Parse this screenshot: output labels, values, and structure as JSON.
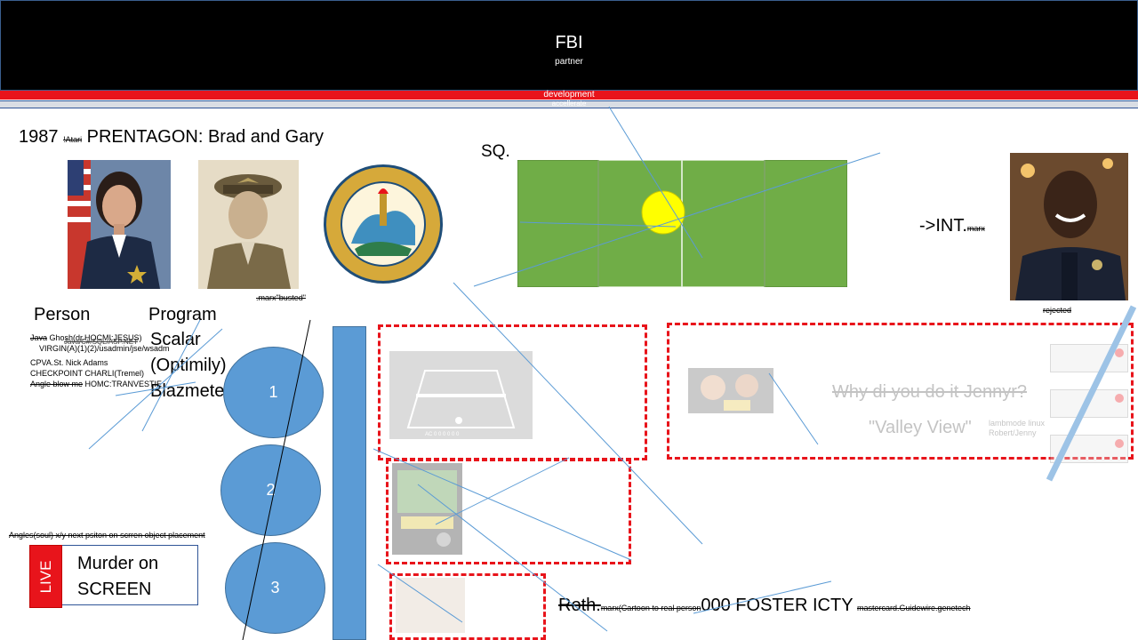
{
  "header": {
    "title": "FBI",
    "subtitle": "partner",
    "red_bar_label": "development",
    "gray_bar_label": "accellerate"
  },
  "top_left": {
    "year": "1987",
    "struck": "!Atari",
    "title": "PRENTAGON: Brad and Gary"
  },
  "caption_busted": ".marx\"busted\"",
  "sq_label": "SQ.",
  "int_label": "->INT.",
  "int_struck": "marx",
  "rejected_label": "rejected",
  "columns": {
    "person": "Person",
    "program": "Program"
  },
  "program_items": [
    "Scalar",
    "(Optimily)",
    "Blazmeter"
  ],
  "person_notes": [
    {
      "struck": "Java",
      "text": " Ghosh(dr.HOCMI:JESUS)"
    },
    {
      "struck": "",
      "text": "VIRGIN(A)(1)(2)/usadmin/jse/wsadm"
    },
    {
      "struck": "",
      "text": "CPVA.St. Nick Adams"
    },
    {
      "struck": "",
      "text": "CHECKPOINT CHARLI(Tremel)"
    },
    {
      "struck": "Angle blow me",
      "text": " HOMC:TRANVESTIE"
    }
  ],
  "overlap_note": "Java/C#/SQL/ASP.NET",
  "circles": [
    "1",
    "2",
    "3"
  ],
  "angles_note": "Angles(soul) x/y next psiton on scrren object placement",
  "live": {
    "badge": "LIVE",
    "text": "Murder on SCREEN"
  },
  "jenny": {
    "question": "Why di you do it Jennyr?",
    "valley": "\"Valley View\"",
    "side_note_1": "lambmode linux",
    "side_note_2": "Robert/Jenny"
  },
  "court_game": {
    "score": "AC 0 0 0 0 0 0"
  },
  "bottom": {
    "roth": "Roth.",
    "roth_note": "marx(Cartoon to real person",
    "foster": "000 FOSTER ICTY",
    "foster_note": "mastercard.Guidewire.genetech"
  },
  "colors": {
    "header_bg": "#000000",
    "red_bar": "#e8141b",
    "court_green": "#70ad47",
    "ball_yellow": "#ffff00",
    "circle_blue": "#5b9bd5",
    "dashed_red": "#e8141b"
  }
}
